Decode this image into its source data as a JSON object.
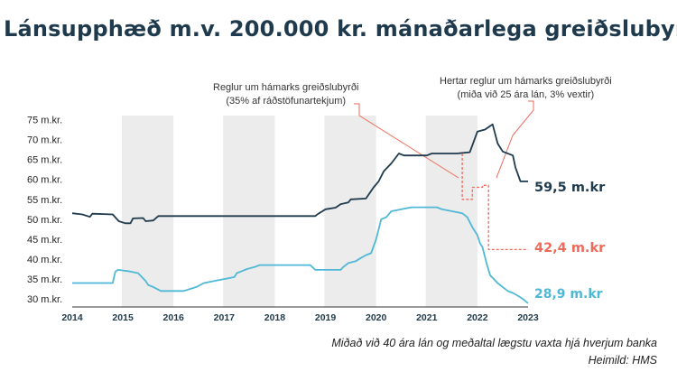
{
  "title": "Lánsupphæð m.v. 200.000 kr. mánaðarlega greiðslubyrði",
  "annotations": [
    {
      "line1": "Reglur um hámarks greiðslubyrði",
      "line2": "(35% af ráðstöfunartekjum)"
    },
    {
      "line1": "Hertar reglur um hámarks greiðslubyrði",
      "line2": "(miða við 25 ára lán, 3% vextir)"
    }
  ],
  "footnote": "Miðað við 40 ára lán og meðaltal lægstu vaxta hjá hverjum banka",
  "source": "Heimild: HMS",
  "chart_data": {
    "type": "line",
    "ylim": [
      28,
      76
    ],
    "xlim": [
      2014.0,
      2023.0
    ],
    "yticks": [
      30,
      35,
      40,
      45,
      50,
      55,
      60,
      65,
      70,
      75
    ],
    "ytick_suffix": " m.kr.",
    "xticks": [
      "2014",
      "2015",
      "2016",
      "2017",
      "2018",
      "2019",
      "2020",
      "2021",
      "2022",
      "2023"
    ],
    "grid": "alternating year bands",
    "colors": {
      "dark": "#1f3a4d",
      "light": "#4fb8d6",
      "red": "#ef6a5a",
      "band": "#ececec"
    },
    "series": [
      {
        "key": "dark",
        "end_label": "59,5 m.kr",
        "points": [
          [
            2014.0,
            51.5
          ],
          [
            2014.2,
            51.2
          ],
          [
            2014.35,
            50.6
          ],
          [
            2014.4,
            51.4
          ],
          [
            2014.8,
            51.2
          ],
          [
            2014.92,
            49.5
          ],
          [
            2015.05,
            49.0
          ],
          [
            2015.15,
            49.0
          ],
          [
            2015.2,
            50.2
          ],
          [
            2015.4,
            50.3
          ],
          [
            2015.45,
            49.5
          ],
          [
            2015.6,
            49.7
          ],
          [
            2015.7,
            50.8
          ],
          [
            2016.0,
            50.8
          ],
          [
            2017.0,
            50.8
          ],
          [
            2018.0,
            50.8
          ],
          [
            2018.8,
            50.8
          ],
          [
            2018.85,
            51.3
          ],
          [
            2019.0,
            52.5
          ],
          [
            2019.2,
            52.9
          ],
          [
            2019.3,
            53.8
          ],
          [
            2019.45,
            54.2
          ],
          [
            2019.5,
            55.0
          ],
          [
            2019.8,
            55.2
          ],
          [
            2019.95,
            58.0
          ],
          [
            2020.05,
            59.5
          ],
          [
            2020.15,
            62.0
          ],
          [
            2020.3,
            64.0
          ],
          [
            2020.45,
            66.5
          ],
          [
            2020.55,
            66.0
          ],
          [
            2021.0,
            66.0
          ],
          [
            2021.1,
            66.5
          ],
          [
            2021.6,
            66.5
          ],
          [
            2021.85,
            66.8
          ],
          [
            2022.0,
            72.0
          ],
          [
            2022.15,
            72.5
          ],
          [
            2022.3,
            73.8
          ],
          [
            2022.4,
            69.0
          ],
          [
            2022.5,
            67.0
          ],
          [
            2022.7,
            66.0
          ],
          [
            2022.75,
            63.0
          ],
          [
            2022.85,
            59.5
          ],
          [
            2023.0,
            59.5
          ]
        ]
      },
      {
        "key": "light",
        "end_label": "28,9 m.kr",
        "points": [
          [
            2014.0,
            34.0
          ],
          [
            2014.5,
            34.0
          ],
          [
            2014.8,
            34.0
          ],
          [
            2014.85,
            36.8
          ],
          [
            2014.9,
            37.3
          ],
          [
            2015.1,
            37.0
          ],
          [
            2015.3,
            36.5
          ],
          [
            2015.45,
            34.5
          ],
          [
            2015.5,
            33.5
          ],
          [
            2015.6,
            33.0
          ],
          [
            2015.75,
            32.0
          ],
          [
            2016.0,
            32.0
          ],
          [
            2016.2,
            32.0
          ],
          [
            2016.45,
            33.0
          ],
          [
            2016.6,
            34.0
          ],
          [
            2016.8,
            34.5
          ],
          [
            2017.0,
            35.0
          ],
          [
            2017.2,
            35.5
          ],
          [
            2017.25,
            36.5
          ],
          [
            2017.35,
            37.0
          ],
          [
            2017.45,
            37.5
          ],
          [
            2017.6,
            38.0
          ],
          [
            2017.7,
            38.5
          ],
          [
            2018.0,
            38.5
          ],
          [
            2018.7,
            38.5
          ],
          [
            2018.8,
            37.3
          ],
          [
            2019.0,
            37.3
          ],
          [
            2019.3,
            37.3
          ],
          [
            2019.35,
            38.0
          ],
          [
            2019.45,
            39.0
          ],
          [
            2019.6,
            39.5
          ],
          [
            2019.7,
            40.3
          ],
          [
            2019.8,
            41.0
          ],
          [
            2019.9,
            41.5
          ],
          [
            2020.0,
            45.0
          ],
          [
            2020.1,
            50.0
          ],
          [
            2020.2,
            50.5
          ],
          [
            2020.3,
            52.0
          ],
          [
            2020.5,
            52.5
          ],
          [
            2020.7,
            53.0
          ],
          [
            2021.0,
            53.0
          ],
          [
            2021.2,
            53.0
          ],
          [
            2021.3,
            52.5
          ],
          [
            2021.5,
            52.0
          ],
          [
            2021.7,
            51.5
          ],
          [
            2021.8,
            50.5
          ],
          [
            2021.9,
            48.0
          ],
          [
            2022.0,
            46.0
          ],
          [
            2022.05,
            44.0
          ],
          [
            2022.1,
            43.0
          ],
          [
            2022.18,
            39.0
          ],
          [
            2022.25,
            36.0
          ],
          [
            2022.4,
            34.0
          ],
          [
            2022.5,
            33.0
          ],
          [
            2022.6,
            32.0
          ],
          [
            2022.7,
            31.5
          ],
          [
            2022.8,
            30.8
          ],
          [
            2022.9,
            30.0
          ],
          [
            2023.0,
            28.9
          ]
        ]
      },
      {
        "key": "red",
        "dashed": true,
        "end_label": "42,4 m.kr",
        "points": [
          [
            2021.7,
            66.5
          ],
          [
            2021.7,
            55.0
          ],
          [
            2021.9,
            55.0
          ],
          [
            2021.9,
            58.0
          ],
          [
            2022.1,
            58.0
          ],
          [
            2022.1,
            58.5
          ],
          [
            2022.22,
            58.5
          ],
          [
            2022.22,
            42.4
          ],
          [
            2023.0,
            42.4
          ]
        ]
      }
    ]
  }
}
